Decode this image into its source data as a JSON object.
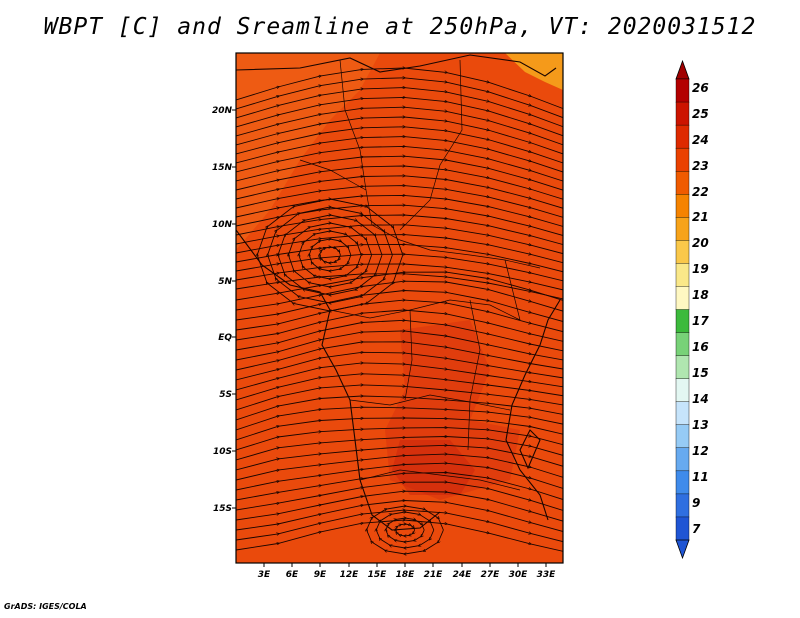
{
  "title": "WBPT [C] and Sreamline at 250hPa, VT: 2020031512",
  "credit": "GrADS: IGES/COLA",
  "lat_labels": [
    "20N",
    "15N",
    "10N",
    "5N",
    "EQ",
    "5S",
    "10S",
    "15S"
  ],
  "lon_labels": [
    "3E",
    "6E",
    "9E",
    "12E",
    "15E",
    "18E",
    "21E",
    "24E",
    "27E",
    "30E",
    "33E"
  ],
  "colorbar": {
    "labels": [
      "26",
      "25",
      "24",
      "23",
      "22",
      "21",
      "20",
      "19",
      "18",
      "17",
      "16",
      "15",
      "14",
      "13",
      "12",
      "11",
      "9",
      "7"
    ],
    "colors": [
      "#b30000",
      "#cc1400",
      "#de2a00",
      "#ea4100",
      "#f05b00",
      "#f58300",
      "#f7a31a",
      "#fac84a",
      "#fae889",
      "#fff8c2",
      "#3cba3c",
      "#78d278",
      "#b0e6b0",
      "#e3f7f2",
      "#c6e4fb",
      "#96cbf5",
      "#67aaf0",
      "#3f8beb",
      "#2f6fe0",
      "#1f55d4"
    ],
    "top_color": "#a00000",
    "bottom_color": "#1f55d4"
  },
  "map": {
    "fill_color": "#ea4a0c",
    "warm_color": "#d8350f",
    "hot_color": "#c9240c",
    "cool_color": "#f06a1a",
    "orange_corner": "#f59a1a"
  }
}
